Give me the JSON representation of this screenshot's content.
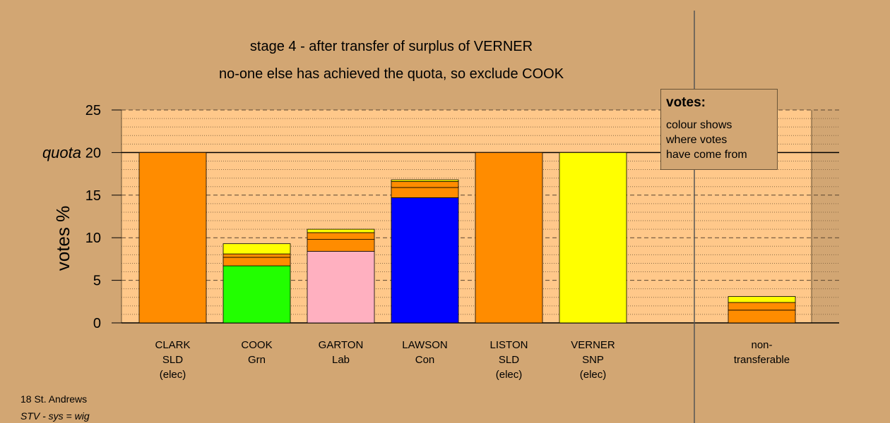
{
  "chart_data": {
    "type": "bar",
    "title_line1": "stage 4 - after transfer of surplus of VERNER",
    "title_line2": "no-one else has achieved the quota, so exclude COOK",
    "ylabel": "votes %",
    "quota_label": "quota",
    "quota_value": 20,
    "ylim": [
      0,
      25
    ],
    "yticks": [
      0,
      5,
      10,
      15,
      20,
      25
    ],
    "grid": true,
    "candidates": [
      {
        "name": "CLARK",
        "party": "SLD",
        "status": "(elec)",
        "segments": [
          {
            "value": 20,
            "color": "#ff8c00"
          }
        ]
      },
      {
        "name": "COOK",
        "party": "Grn",
        "status": "",
        "segments": [
          {
            "value": 6.7,
            "color": "#22ff00"
          },
          {
            "value": 1.0,
            "color": "#ff8c00"
          },
          {
            "value": 0.4,
            "color": "#ff8c00"
          },
          {
            "value": 1.2,
            "color": "#ffff00"
          }
        ]
      },
      {
        "name": "GARTON",
        "party": "Lab",
        "status": "",
        "segments": [
          {
            "value": 8.4,
            "color": "#ffb0c0"
          },
          {
            "value": 1.4,
            "color": "#ff8c00"
          },
          {
            "value": 0.8,
            "color": "#ff8c00"
          },
          {
            "value": 0.4,
            "color": "#ffff00"
          }
        ]
      },
      {
        "name": "LAWSON",
        "party": "Con",
        "status": "",
        "segments": [
          {
            "value": 14.7,
            "color": "#0000ff"
          },
          {
            "value": 1.2,
            "color": "#ff8c00"
          },
          {
            "value": 0.7,
            "color": "#ff8c00"
          },
          {
            "value": 0.2,
            "color": "#ffff00"
          }
        ]
      },
      {
        "name": "LISTON",
        "party": "SLD",
        "status": "(elec)",
        "segments": [
          {
            "value": 20,
            "color": "#ff8c00"
          }
        ]
      },
      {
        "name": "VERNER",
        "party": "SNP",
        "status": "(elec)",
        "segments": [
          {
            "value": 20,
            "color": "#ffff00"
          }
        ]
      }
    ],
    "nontransferable": {
      "name": "non-",
      "party": "transferable",
      "segments": [
        {
          "value": 1.5,
          "color": "#ff8c00"
        },
        {
          "value": 0.9,
          "color": "#ff8c00"
        },
        {
          "value": 0.7,
          "color": "#ffff00"
        }
      ]
    },
    "legend": {
      "title": "votes:",
      "lines": [
        "colour shows",
        "where votes",
        "have come from"
      ]
    },
    "colors": {
      "background": "#d2a673",
      "plot_background": "#ffc88a"
    }
  },
  "footer": {
    "line1": "18 St. Andrews",
    "line2": "STV - sys = wig"
  }
}
